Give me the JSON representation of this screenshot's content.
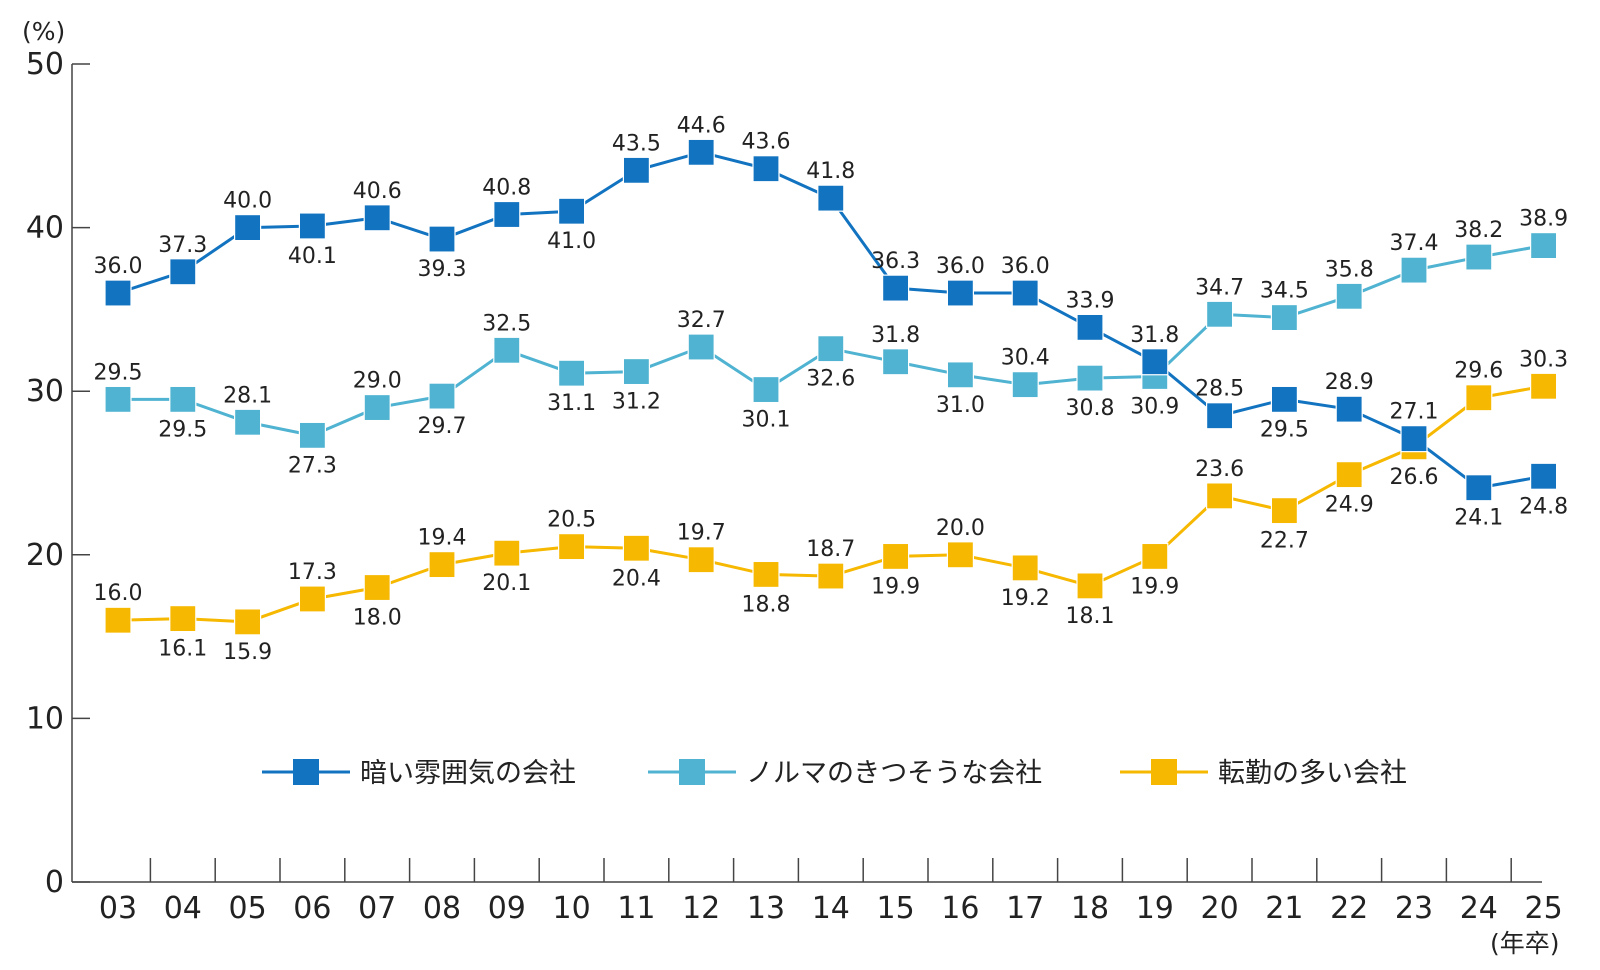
{
  "chart_data": {
    "type": "line",
    "y_unit_label": "(%)",
    "x_unit_label": "(年卒)",
    "categories": [
      "03",
      "04",
      "05",
      "06",
      "07",
      "08",
      "09",
      "10",
      "11",
      "12",
      "13",
      "14",
      "15",
      "16",
      "17",
      "18",
      "19",
      "20",
      "21",
      "22",
      "23",
      "24",
      "25"
    ],
    "ylim": [
      0,
      50
    ],
    "yticks": [
      0,
      10,
      20,
      30,
      40,
      50
    ],
    "grid": false,
    "legend_position": "bottom-center",
    "series": [
      {
        "name": "暗い雰囲気の会社",
        "color": "#1273c0",
        "values": [
          36.0,
          37.3,
          40.0,
          40.1,
          40.6,
          39.3,
          40.8,
          41.0,
          43.5,
          44.6,
          43.6,
          41.8,
          36.3,
          36.0,
          36.0,
          33.9,
          31.8,
          28.5,
          29.5,
          28.9,
          27.1,
          24.1,
          24.8
        ]
      },
      {
        "name": "ノルマのきつそうな会社",
        "color": "#4fb3d1",
        "values": [
          29.5,
          29.5,
          28.1,
          27.3,
          29.0,
          29.7,
          32.5,
          31.1,
          31.2,
          32.7,
          30.1,
          32.6,
          31.8,
          31.0,
          30.4,
          30.8,
          30.9,
          34.7,
          34.5,
          35.8,
          37.4,
          38.2,
          38.9
        ]
      },
      {
        "name": "転勤の多い会社",
        "color": "#f6b800",
        "values": [
          16.0,
          16.1,
          15.9,
          17.3,
          18.0,
          19.4,
          20.1,
          20.5,
          20.4,
          19.7,
          18.8,
          18.7,
          19.9,
          20.0,
          19.2,
          18.1,
          19.9,
          23.6,
          22.7,
          24.9,
          26.6,
          29.6,
          30.3
        ]
      }
    ],
    "label_placement": [
      [
        "above",
        "above",
        "above",
        "below",
        "above",
        "below",
        "above",
        "below",
        "above",
        "above",
        "above",
        "above",
        "above",
        "above",
        "above",
        "above",
        "above",
        "above",
        "below",
        "above",
        "above",
        "below",
        "below"
      ],
      [
        "above",
        "below",
        "above",
        "below",
        "above",
        "below",
        "above",
        "below",
        "below",
        "above",
        "below",
        "below",
        "above",
        "below",
        "above",
        "below",
        "below",
        "above",
        "above",
        "above",
        "above",
        "above",
        "above"
      ],
      [
        "above",
        "below",
        "below",
        "above",
        "below",
        "above",
        "below",
        "above",
        "below",
        "above",
        "below",
        "above",
        "below",
        "above",
        "below",
        "below",
        "below",
        "above",
        "below",
        "below",
        "below",
        "above",
        "above"
      ]
    ]
  }
}
